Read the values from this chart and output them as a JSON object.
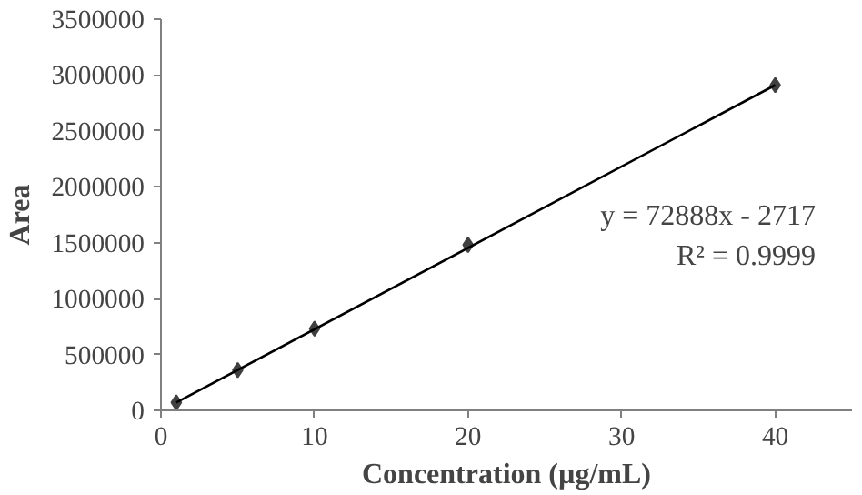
{
  "chart_data": {
    "type": "scatter",
    "xlabel": "Concentration (µg/mL)",
    "ylabel": "Area",
    "series": [
      {
        "color": "#404040",
        "marker": "diamond",
        "x": [
          1,
          5,
          10,
          20,
          40
        ],
        "values": [
          70000,
          360000,
          730000,
          1480000,
          2910000
        ]
      },
      {
        "type": "line",
        "color": "#000000",
        "marker": "none",
        "x": [
          1,
          40
        ],
        "values": [
          70000,
          2910000
        ]
      }
    ],
    "annotations": [
      "y = 72888x - 2717",
      "R² = 0.9999"
    ],
    "xlim": [
      0,
      45
    ],
    "xticks": [
      0,
      10,
      20,
      30,
      40
    ],
    "ylim": [
      0,
      3500000
    ],
    "yticks": [
      0,
      500000,
      1000000,
      1500000,
      2000000,
      2500000,
      3000000,
      3500000
    ],
    "grid": false
  }
}
